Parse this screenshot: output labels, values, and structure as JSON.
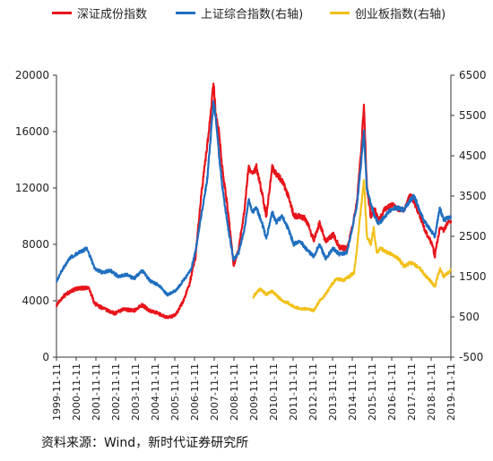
{
  "legend": [
    {
      "label": "深证成份指数",
      "color": "#e8141b"
    },
    {
      "label": "上证综合指数(右轴)",
      "color": "#1f6fbf"
    },
    {
      "label": "创业板指数(右轴)",
      "color": "#f2c018"
    }
  ],
  "source": "资料来源：Wind，新时代证券研究所",
  "chart_data": {
    "type": "line",
    "title": "",
    "left_axis": {
      "min": 0,
      "max": 20000,
      "ticks": [
        "0",
        "4000",
        "8000",
        "12000",
        "16000",
        "20000"
      ]
    },
    "right_axis": {
      "min": -500,
      "max": 6500,
      "ticks": [
        "-500",
        "500",
        "1500",
        "2500",
        "3500",
        "4500",
        "5500",
        "6500"
      ]
    },
    "x_range": [
      1999.86,
      2019.86
    ],
    "x_ticks": [
      "1999-11-11",
      "2000-11-11",
      "2001-11-11",
      "2002-11-11",
      "2003-11-11",
      "2004-11-11",
      "2005-11-11",
      "2006-11-11",
      "2007-11-11",
      "2008-11-11",
      "2009-11-11",
      "2010-11-11",
      "2011-11-11",
      "2012-11-11",
      "2013-11-11",
      "2014-11-11",
      "2015-11-11",
      "2016-11-11",
      "2017-11-11",
      "2018-11-11",
      "2019-11-11"
    ],
    "series": [
      {
        "name": "深证成份指数",
        "axis": "left",
        "color": "#e8141b",
        "points": [
          [
            1999.86,
            3700
          ],
          [
            2000.2,
            4300
          ],
          [
            2000.6,
            4700
          ],
          [
            2001.0,
            4900
          ],
          [
            2001.5,
            4900
          ],
          [
            2001.8,
            3800
          ],
          [
            2002.3,
            3400
          ],
          [
            2002.8,
            3100
          ],
          [
            2003.3,
            3400
          ],
          [
            2003.8,
            3300
          ],
          [
            2004.2,
            3700
          ],
          [
            2004.6,
            3300
          ],
          [
            2005.0,
            3100
          ],
          [
            2005.5,
            2800
          ],
          [
            2005.9,
            3000
          ],
          [
            2006.3,
            4000
          ],
          [
            2006.6,
            5200
          ],
          [
            2006.9,
            7000
          ],
          [
            2007.2,
            11500
          ],
          [
            2007.5,
            15000
          ],
          [
            2007.7,
            17500
          ],
          [
            2007.82,
            19500
          ],
          [
            2007.95,
            17000
          ],
          [
            2008.1,
            16000
          ],
          [
            2008.3,
            13000
          ],
          [
            2008.5,
            11000
          ],
          [
            2008.7,
            8500
          ],
          [
            2008.85,
            6500
          ],
          [
            2009.1,
            7700
          ],
          [
            2009.4,
            10500
          ],
          [
            2009.6,
            13500
          ],
          [
            2009.8,
            13000
          ],
          [
            2010.0,
            13500
          ],
          [
            2010.3,
            11500
          ],
          [
            2010.5,
            10000
          ],
          [
            2010.8,
            13500
          ],
          [
            2011.0,
            13000
          ],
          [
            2011.3,
            12500
          ],
          [
            2011.6,
            11500
          ],
          [
            2011.9,
            10000
          ],
          [
            2012.2,
            10000
          ],
          [
            2012.5,
            9800
          ],
          [
            2012.9,
            8300
          ],
          [
            2013.2,
            9500
          ],
          [
            2013.5,
            8200
          ],
          [
            2013.9,
            8700
          ],
          [
            2014.2,
            7800
          ],
          [
            2014.6,
            7700
          ],
          [
            2014.9,
            9500
          ],
          [
            2015.1,
            11000
          ],
          [
            2015.3,
            14500
          ],
          [
            2015.45,
            18000
          ],
          [
            2015.6,
            12000
          ],
          [
            2015.8,
            10000
          ],
          [
            2016.0,
            10500
          ],
          [
            2016.2,
            9700
          ],
          [
            2016.5,
            10500
          ],
          [
            2016.9,
            10800
          ],
          [
            2017.2,
            10500
          ],
          [
            2017.5,
            10500
          ],
          [
            2017.8,
            11500
          ],
          [
            2018.0,
            11000
          ],
          [
            2018.3,
            10000
          ],
          [
            2018.6,
            8800
          ],
          [
            2018.9,
            8000
          ],
          [
            2019.05,
            7200
          ],
          [
            2019.3,
            9200
          ],
          [
            2019.5,
            9000
          ],
          [
            2019.7,
            9600
          ],
          [
            2019.86,
            9700
          ]
        ]
      },
      {
        "name": "上证综合指数(右轴)",
        "axis": "right",
        "color": "#1f6fbf",
        "points": [
          [
            1999.86,
            1400
          ],
          [
            2000.2,
            1700
          ],
          [
            2000.5,
            1950
          ],
          [
            2000.8,
            2050
          ],
          [
            2001.0,
            2100
          ],
          [
            2001.4,
            2200
          ],
          [
            2001.8,
            1700
          ],
          [
            2002.2,
            1600
          ],
          [
            2002.6,
            1650
          ],
          [
            2003.0,
            1500
          ],
          [
            2003.4,
            1550
          ],
          [
            2003.8,
            1450
          ],
          [
            2004.2,
            1650
          ],
          [
            2004.6,
            1400
          ],
          [
            2005.0,
            1300
          ],
          [
            2005.5,
            1050
          ],
          [
            2005.9,
            1150
          ],
          [
            2006.3,
            1400
          ],
          [
            2006.7,
            1700
          ],
          [
            2006.9,
            2100
          ],
          [
            2007.2,
            3000
          ],
          [
            2007.5,
            3900
          ],
          [
            2007.7,
            5100
          ],
          [
            2007.82,
            5800
          ],
          [
            2007.95,
            5400
          ],
          [
            2008.1,
            4500
          ],
          [
            2008.3,
            3600
          ],
          [
            2008.6,
            2600
          ],
          [
            2008.85,
            1900
          ],
          [
            2009.1,
            2100
          ],
          [
            2009.4,
            2700
          ],
          [
            2009.6,
            3400
          ],
          [
            2009.8,
            3100
          ],
          [
            2010.0,
            3200
          ],
          [
            2010.3,
            2800
          ],
          [
            2010.5,
            2450
          ],
          [
            2010.8,
            3100
          ],
          [
            2011.0,
            2850
          ],
          [
            2011.3,
            3000
          ],
          [
            2011.6,
            2700
          ],
          [
            2011.9,
            2300
          ],
          [
            2012.2,
            2400
          ],
          [
            2012.5,
            2200
          ],
          [
            2012.9,
            2000
          ],
          [
            2013.2,
            2300
          ],
          [
            2013.5,
            1950
          ],
          [
            2013.9,
            2200
          ],
          [
            2014.2,
            2050
          ],
          [
            2014.6,
            2100
          ],
          [
            2014.9,
            2800
          ],
          [
            2015.1,
            3300
          ],
          [
            2015.3,
            4300
          ],
          [
            2015.45,
            5100
          ],
          [
            2015.6,
            3700
          ],
          [
            2015.8,
            3300
          ],
          [
            2016.0,
            3000
          ],
          [
            2016.2,
            2800
          ],
          [
            2016.5,
            3000
          ],
          [
            2016.9,
            3200
          ],
          [
            2017.2,
            3200
          ],
          [
            2017.5,
            3150
          ],
          [
            2017.8,
            3400
          ],
          [
            2018.0,
            3500
          ],
          [
            2018.3,
            3100
          ],
          [
            2018.6,
            2800
          ],
          [
            2018.9,
            2600
          ],
          [
            2019.05,
            2500
          ],
          [
            2019.3,
            3200
          ],
          [
            2019.5,
            2900
          ],
          [
            2019.7,
            2950
          ],
          [
            2019.86,
            2950
          ]
        ]
      },
      {
        "name": "创业板指数(右轴)",
        "axis": "right",
        "color": "#f2c018",
        "points": [
          [
            2009.83,
            1000
          ],
          [
            2010.0,
            1100
          ],
          [
            2010.2,
            1200
          ],
          [
            2010.5,
            1050
          ],
          [
            2010.8,
            1150
          ],
          [
            2011.0,
            1050
          ],
          [
            2011.3,
            900
          ],
          [
            2011.6,
            850
          ],
          [
            2011.9,
            750
          ],
          [
            2012.3,
            700
          ],
          [
            2012.6,
            700
          ],
          [
            2012.9,
            650
          ],
          [
            2013.2,
            900
          ],
          [
            2013.5,
            1050
          ],
          [
            2013.8,
            1300
          ],
          [
            2014.1,
            1450
          ],
          [
            2014.4,
            1400
          ],
          [
            2014.7,
            1500
          ],
          [
            2014.95,
            1600
          ],
          [
            2015.1,
            2200
          ],
          [
            2015.3,
            3200
          ],
          [
            2015.45,
            3900
          ],
          [
            2015.6,
            2500
          ],
          [
            2015.8,
            2300
          ],
          [
            2015.95,
            2700
          ],
          [
            2016.1,
            2100
          ],
          [
            2016.3,
            2200
          ],
          [
            2016.6,
            2100
          ],
          [
            2016.9,
            2050
          ],
          [
            2017.2,
            1950
          ],
          [
            2017.5,
            1750
          ],
          [
            2017.8,
            1850
          ],
          [
            2018.0,
            1800
          ],
          [
            2018.3,
            1700
          ],
          [
            2018.6,
            1500
          ],
          [
            2018.9,
            1350
          ],
          [
            2019.05,
            1250
          ],
          [
            2019.3,
            1700
          ],
          [
            2019.5,
            1500
          ],
          [
            2019.7,
            1600
          ],
          [
            2019.86,
            1650
          ]
        ]
      }
    ]
  }
}
